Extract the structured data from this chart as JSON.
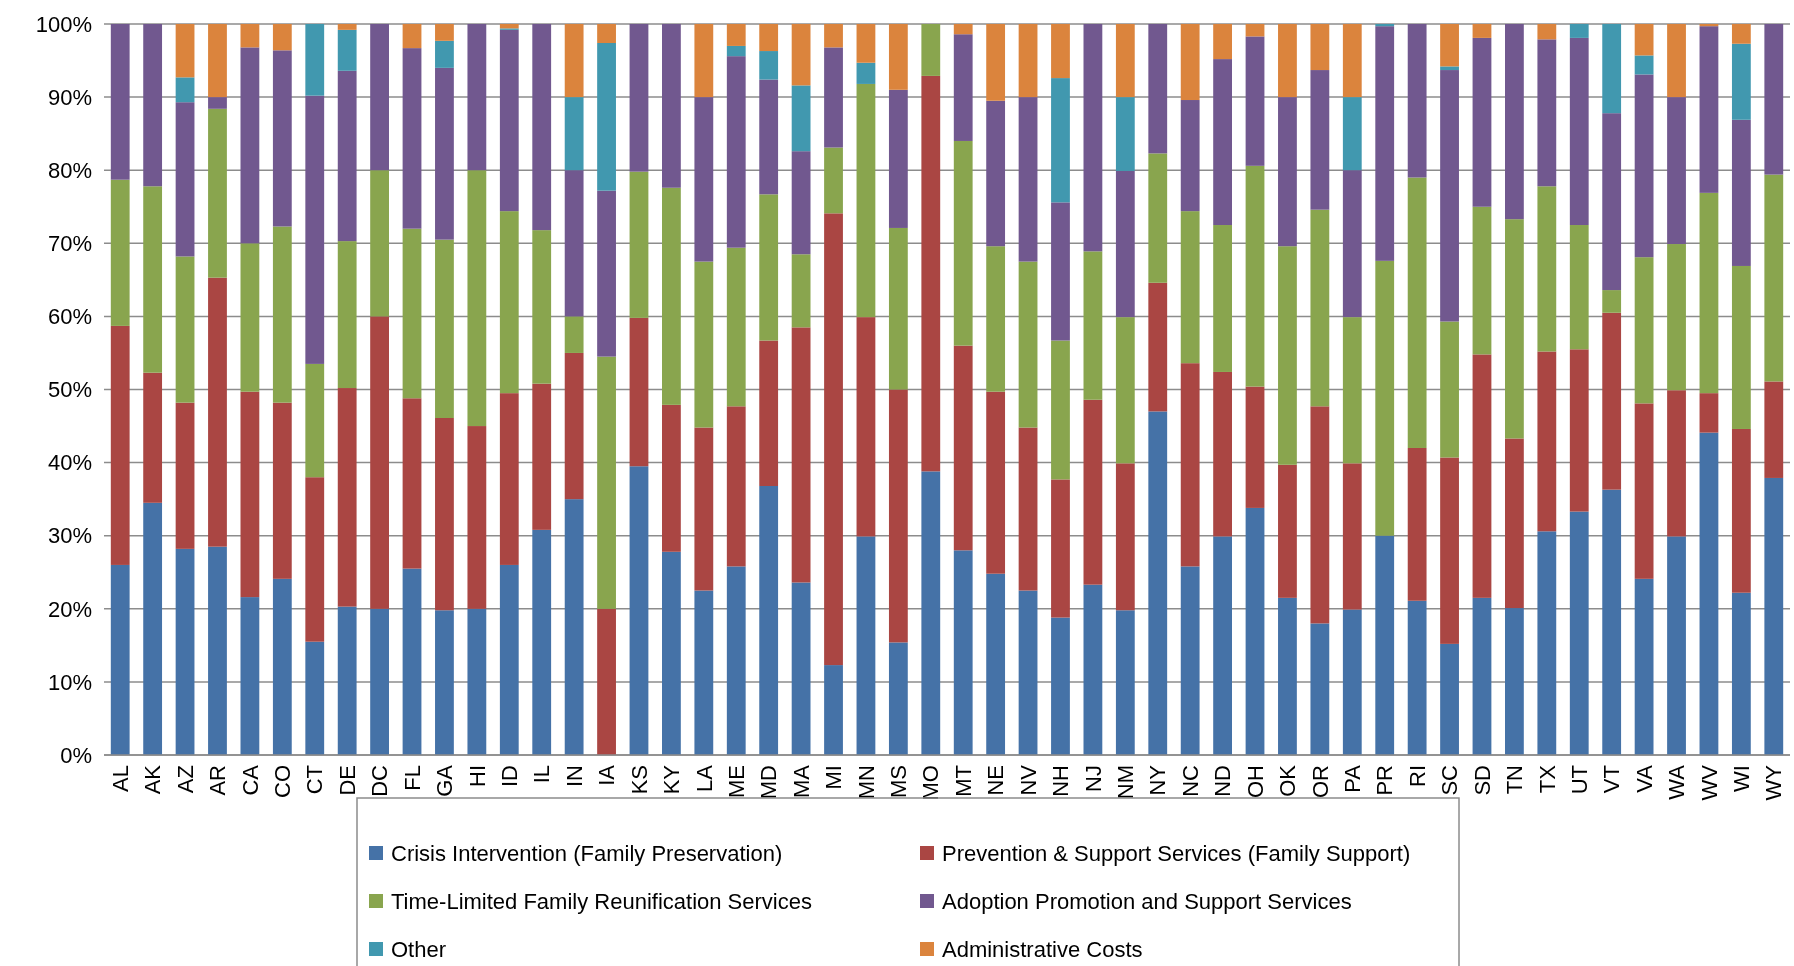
{
  "chart_data": {
    "type": "bar",
    "stacked": true,
    "categories": [
      "AL",
      "AK",
      "AZ",
      "AR",
      "CA",
      "CO",
      "CT",
      "DE",
      "DC",
      "FL",
      "GA",
      "HI",
      "ID",
      "IL",
      "IN",
      "IA",
      "KS",
      "KY",
      "LA",
      "ME",
      "MD",
      "MA",
      "MI",
      "MN",
      "MS",
      "MO",
      "MT",
      "NE",
      "NV",
      "NH",
      "NJ",
      "NM",
      "NY",
      "NC",
      "ND",
      "OH",
      "OK",
      "OR",
      "PA",
      "PR",
      "RI",
      "SC",
      "SD",
      "TN",
      "TX",
      "UT",
      "VT",
      "VA",
      "WA",
      "WV",
      "WI",
      "WY"
    ],
    "series": [
      {
        "name": "Crisis Intervention (Family Preservation)",
        "color": "#4572a7",
        "values": [
          26,
          34.5,
          28.2,
          28.5,
          21.6,
          24.1,
          15.5,
          20.3,
          20,
          25.5,
          19.8,
          20,
          26,
          30.8,
          35,
          0,
          39.5,
          27.8,
          22.5,
          25.8,
          36.8,
          23.6,
          12.3,
          29.9,
          15.4,
          38.8,
          28,
          24.8,
          22.5,
          18.8,
          23.3,
          19.8,
          47,
          25.8,
          29.9,
          33.8,
          21.5,
          18,
          19.9,
          30,
          21.1,
          15.2,
          21.5,
          20.1,
          30.6,
          33.3,
          36.3,
          24.1,
          29.9,
          44.1,
          22.2,
          37.9
        ]
      },
      {
        "name": "Prevention & Support Services (Family Support)",
        "color": "#aa4643",
        "values": [
          32.7,
          17.8,
          20,
          36.8,
          28.1,
          24.1,
          22.5,
          29.9,
          40,
          23.3,
          26.3,
          25,
          23.5,
          20,
          20,
          20,
          20.3,
          20.1,
          22.3,
          21.9,
          19.9,
          34.9,
          61.8,
          30,
          34.6,
          54.1,
          28,
          24.9,
          22.3,
          18.9,
          25.3,
          20.1,
          17.6,
          27.8,
          22.5,
          16.6,
          18.2,
          29.7,
          20,
          0,
          20.9,
          25.5,
          33.3,
          23.2,
          24.6,
          22.2,
          24.2,
          24,
          20,
          5.4,
          22.4,
          13.2
        ]
      },
      {
        "name": "Time-Limited Family Reunification Services",
        "color": "#89a54e",
        "values": [
          20,
          25.5,
          20,
          23.1,
          20.3,
          24.1,
          15.5,
          20.1,
          20,
          23.2,
          24.4,
          35,
          24.9,
          21,
          5,
          34.5,
          20,
          29.7,
          22.7,
          21.7,
          20,
          10,
          9,
          31.9,
          22.1,
          7.1,
          28,
          19.9,
          22.7,
          19,
          20.3,
          20,
          17.7,
          20.8,
          20.1,
          30.2,
          29.9,
          26.9,
          20,
          37.6,
          37,
          18.6,
          20.2,
          30,
          22.6,
          17,
          3.1,
          20,
          20,
          27.4,
          22.3,
          28.3
        ]
      },
      {
        "name": "Adoption Promotion and Support Services",
        "color": "#71588f",
        "values": [
          21.3,
          22.2,
          21.1,
          1.6,
          26.8,
          24.1,
          36.7,
          23.3,
          20,
          24.7,
          23.5,
          20,
          24.8,
          28.2,
          20,
          22.7,
          20.2,
          22.4,
          22.5,
          26.2,
          15.7,
          14.1,
          13.7,
          0,
          18.9,
          0,
          14.6,
          19.9,
          22.5,
          18.9,
          31.1,
          20,
          17.7,
          15.2,
          22.7,
          17.7,
          20.4,
          19.1,
          20.1,
          32.1,
          21,
          34.4,
          23.1,
          26.7,
          20.1,
          25.6,
          24.2,
          25,
          20.1,
          22.8,
          20,
          20.6
        ]
      },
      {
        "name": "Other",
        "color": "#4198af",
        "values": [
          0,
          0,
          3.4,
          0,
          0,
          0,
          9.8,
          5.6,
          0,
          0,
          3.7,
          0,
          0.2,
          0,
          10,
          20.2,
          0,
          0,
          0,
          1.4,
          3.9,
          9,
          0,
          2.9,
          0,
          0,
          0,
          0,
          0,
          17,
          0,
          10.1,
          0,
          0,
          0,
          0,
          0,
          0,
          10,
          0.3,
          0,
          0.5,
          0,
          0,
          0,
          1.9,
          12.2,
          2.6,
          0,
          0,
          10.4,
          0
        ]
      },
      {
        "name": "Administrative Costs",
        "color": "#db843d",
        "values": [
          0,
          0,
          7.3,
          10,
          3.2,
          3.6,
          0,
          0.8,
          0,
          3.3,
          2.3,
          0,
          0.6,
          0,
          10,
          2.6,
          0,
          0,
          10,
          3,
          3.7,
          8.4,
          3.2,
          5.3,
          9,
          0,
          1.4,
          10.5,
          10,
          7.4,
          0,
          10,
          0,
          10.4,
          4.8,
          1.7,
          10,
          6.3,
          10,
          0,
          0,
          5.8,
          1.9,
          0,
          2.1,
          0,
          0,
          4.3,
          10,
          0.3,
          2.7,
          0
        ]
      }
    ],
    "ylim": [
      0,
      100
    ],
    "yticks": [
      {
        "value": 0,
        "label": "0%"
      },
      {
        "value": 10,
        "label": "10%"
      },
      {
        "value": 20,
        "label": "20%"
      },
      {
        "value": 30,
        "label": "30%"
      },
      {
        "value": 40,
        "label": "40%"
      },
      {
        "value": 50,
        "label": "50%"
      },
      {
        "value": 60,
        "label": "60%"
      },
      {
        "value": 70,
        "label": "70%"
      },
      {
        "value": 80,
        "label": "80%"
      },
      {
        "value": 90,
        "label": "90%"
      },
      {
        "value": 100,
        "label": "100%"
      }
    ],
    "grid": "y",
    "legend": "bottom"
  }
}
